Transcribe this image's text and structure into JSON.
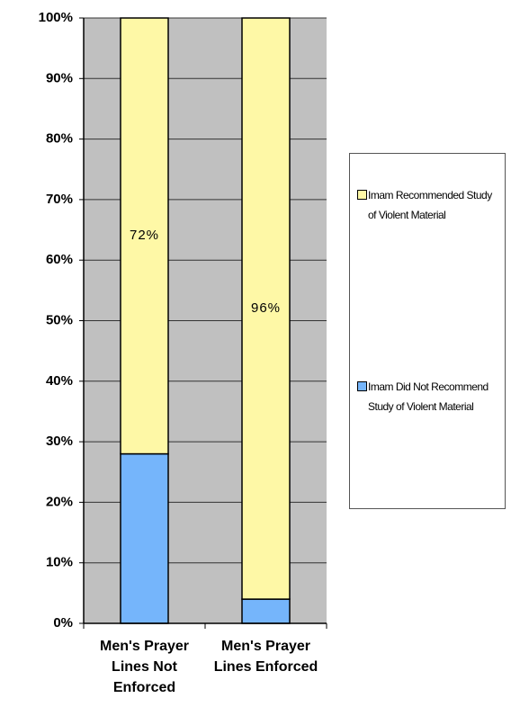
{
  "chart_data": {
    "type": "stacked-bar",
    "categories": [
      "Men's Prayer Lines Not Enforced",
      "Men's Prayer Lines Enforced"
    ],
    "series": [
      {
        "name": "Imam Did Not Recommend Study of Violent Material",
        "color": "#75b5fb",
        "values": [
          28,
          4
        ]
      },
      {
        "name": "Imam Recommended Study of Violent Material",
        "color": "#fef8a6",
        "values": [
          72,
          96
        ],
        "value_labels": [
          "72%",
          "96%"
        ]
      }
    ],
    "ylim": [
      0,
      100
    ],
    "yticks": [
      {
        "value": 0,
        "label": "0%"
      },
      {
        "value": 10,
        "label": "10%"
      },
      {
        "value": 20,
        "label": "20%"
      },
      {
        "value": 30,
        "label": "30%"
      },
      {
        "value": 40,
        "label": "40%"
      },
      {
        "value": 50,
        "label": "50%"
      },
      {
        "value": 60,
        "label": "60%"
      },
      {
        "value": 70,
        "label": "70%"
      },
      {
        "value": 80,
        "label": "80%"
      },
      {
        "value": 90,
        "label": "90%"
      },
      {
        "value": 100,
        "label": "100%"
      }
    ],
    "grid": true,
    "legend": "right"
  }
}
